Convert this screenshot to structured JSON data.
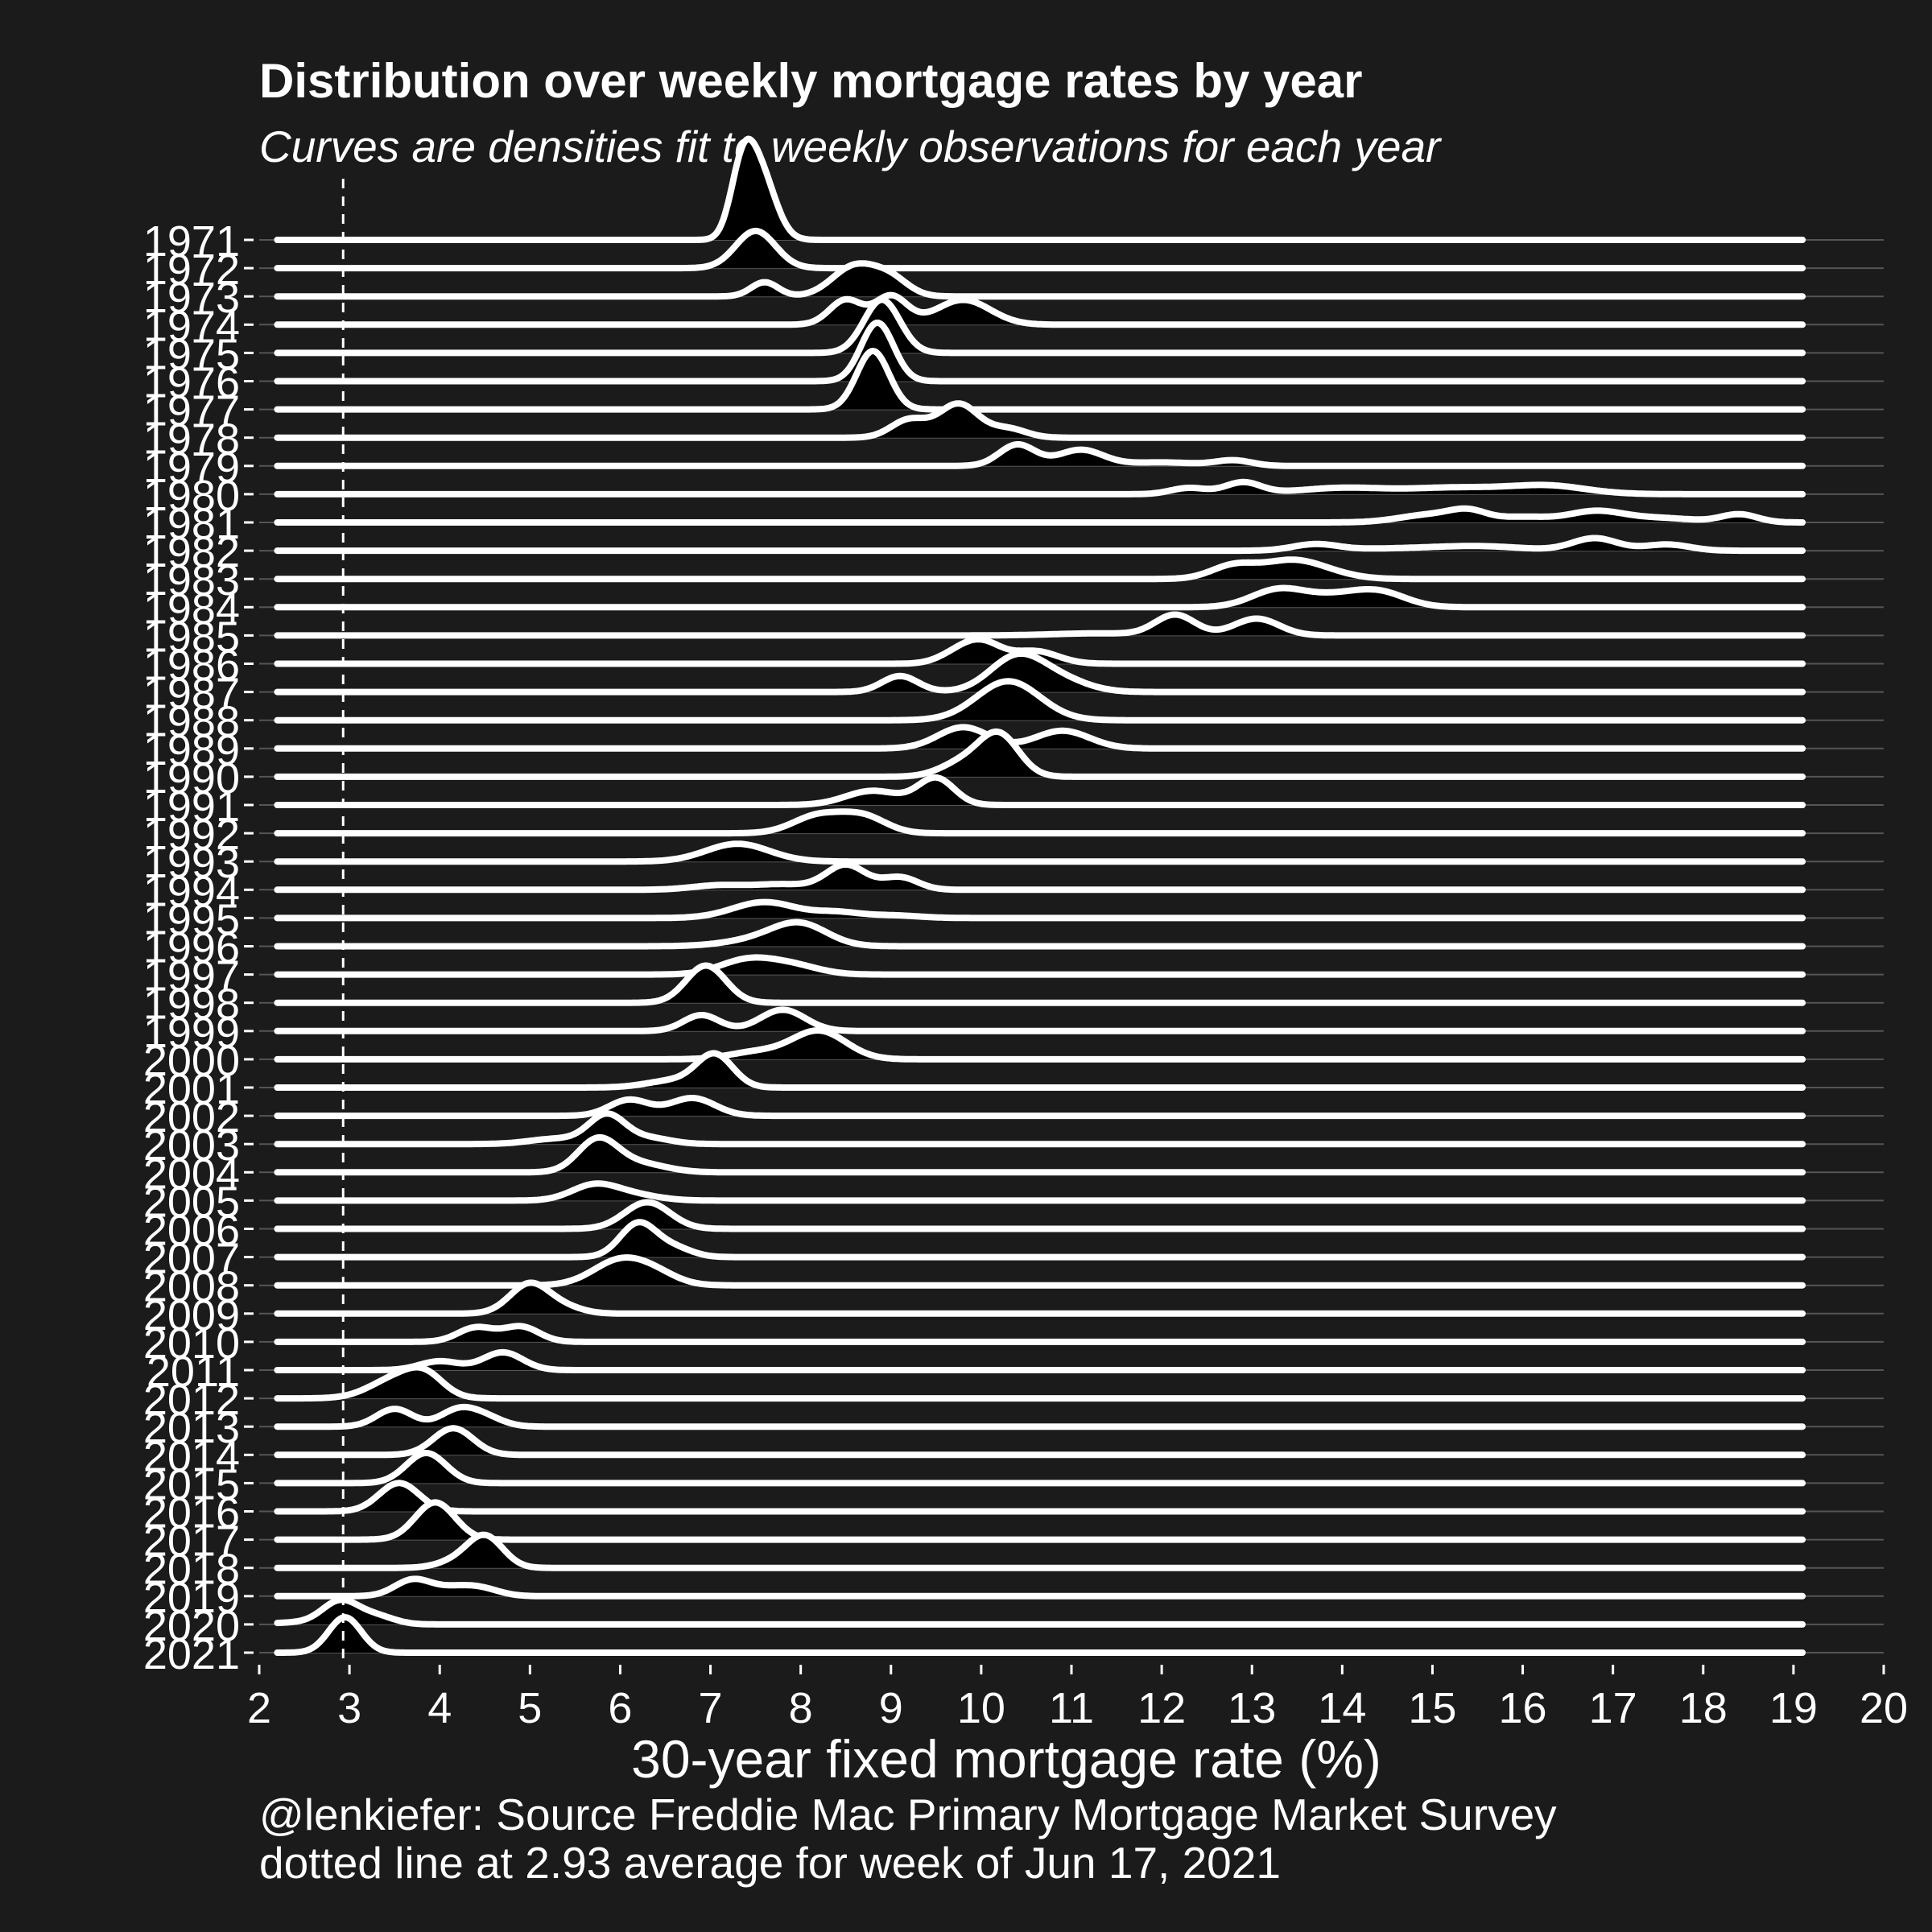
{
  "chart_data": {
    "type": "ridgeline",
    "title": "Distribution over weekly mortgage rates by year",
    "subtitle": "Curves are densities fit to weekly observations for each year",
    "xlabel": "30-year fixed mortgage rate (%)",
    "ylabel": "",
    "xlim": [
      2,
      20
    ],
    "x_ticks": [
      2,
      3,
      4,
      5,
      6,
      7,
      8,
      9,
      10,
      11,
      12,
      13,
      14,
      15,
      16,
      17,
      18,
      19,
      20
    ],
    "density_range": [
      2.2,
      19.1
    ],
    "grid": "horizontal baselines only",
    "reference_line": {
      "x": 2.93,
      "style": "dashed"
    },
    "caption_source": "@lenkiefer: Source Freddie Mac Primary Mortgage Market Survey",
    "caption_note": "dotted line at 2.93 average for week of Jun 17, 2021",
    "colors": {
      "background": "#1b1b1b",
      "fill": "#000000",
      "stroke": "#ffffff",
      "grid": "#555555"
    },
    "series": [
      {
        "year": "1971",
        "peaks": [
          [
            7.35,
            3.4,
            0.13
          ],
          [
            7.55,
            3.7,
            0.17
          ]
        ]
      },
      {
        "year": "1972",
        "peaks": [
          [
            7.5,
            2.1,
            0.22
          ]
        ]
      },
      {
        "year": "1973",
        "peaks": [
          [
            7.6,
            0.8,
            0.15
          ],
          [
            8.6,
            1.7,
            0.25
          ],
          [
            9.0,
            0.9,
            0.2
          ]
        ]
      },
      {
        "year": "1974",
        "peaks": [
          [
            8.5,
            1.4,
            0.18
          ],
          [
            9.0,
            1.6,
            0.18
          ],
          [
            9.8,
            1.4,
            0.3
          ]
        ]
      },
      {
        "year": "1975",
        "peaks": [
          [
            8.9,
            3.0,
            0.2
          ]
        ]
      },
      {
        "year": "1976",
        "peaks": [
          [
            8.85,
            3.3,
            0.18
          ]
        ]
      },
      {
        "year": "1977",
        "peaks": [
          [
            8.8,
            3.3,
            0.18
          ]
        ]
      },
      {
        "year": "1978",
        "peaks": [
          [
            9.2,
            1.0,
            0.2
          ],
          [
            9.75,
            1.9,
            0.22
          ],
          [
            10.3,
            0.5,
            0.2
          ]
        ]
      },
      {
        "year": "1979",
        "peaks": [
          [
            10.4,
            1.2,
            0.2
          ],
          [
            11.1,
            0.9,
            0.25
          ],
          [
            12.0,
            0.2,
            0.4
          ],
          [
            12.8,
            0.3,
            0.2
          ]
        ]
      },
      {
        "year": "1980",
        "peaks": [
          [
            12.3,
            0.35,
            0.2
          ],
          [
            12.9,
            0.65,
            0.2
          ],
          [
            14.0,
            0.35,
            0.5
          ],
          [
            15.2,
            0.3,
            0.5
          ],
          [
            16.3,
            0.35,
            0.4
          ],
          [
            16.0,
            0.15,
            0.6
          ]
        ]
      },
      {
        "year": "1981",
        "peaks": [
          [
            15.0,
            0.45,
            0.35
          ],
          [
            15.4,
            0.5,
            0.2
          ],
          [
            16.0,
            0.3,
            0.3
          ],
          [
            16.8,
            0.6,
            0.3
          ],
          [
            17.5,
            0.25,
            0.4
          ],
          [
            18.4,
            0.45,
            0.2
          ]
        ]
      },
      {
        "year": "1982",
        "peaks": [
          [
            13.7,
            0.35,
            0.25
          ],
          [
            14.5,
            0.1,
            0.5
          ],
          [
            15.5,
            0.25,
            0.5
          ],
          [
            16.8,
            0.7,
            0.25
          ],
          [
            17.6,
            0.35,
            0.25
          ]
        ]
      },
      {
        "year": "1983",
        "peaks": [
          [
            12.8,
            0.75,
            0.25
          ],
          [
            13.4,
            0.9,
            0.3
          ],
          [
            13.8,
            0.35,
            0.3
          ]
        ]
      },
      {
        "year": "1984",
        "peaks": [
          [
            13.3,
            1.0,
            0.3
          ],
          [
            13.9,
            0.5,
            0.3
          ],
          [
            14.4,
            0.85,
            0.3
          ]
        ]
      },
      {
        "year": "1985",
        "peaks": [
          [
            11.3,
            0.12,
            0.5
          ],
          [
            12.15,
            1.15,
            0.22
          ],
          [
            13.05,
            0.95,
            0.25
          ]
        ]
      },
      {
        "year": "1986",
        "peaks": [
          [
            9.7,
            0.4,
            0.2
          ],
          [
            10.0,
            1.2,
            0.22
          ],
          [
            10.6,
            0.7,
            0.25
          ]
        ]
      },
      {
        "year": "1987",
        "peaks": [
          [
            9.1,
            0.9,
            0.2
          ],
          [
            10.4,
            2.0,
            0.3
          ],
          [
            10.9,
            0.6,
            0.3
          ]
        ]
      },
      {
        "year": "1988",
        "peaks": [
          [
            10.3,
            2.2,
            0.35
          ]
        ]
      },
      {
        "year": "1989",
        "peaks": [
          [
            9.8,
            1.2,
            0.28
          ],
          [
            10.9,
            1.0,
            0.3
          ]
        ]
      },
      {
        "year": "1990",
        "peaks": [
          [
            9.8,
            0.8,
            0.25
          ],
          [
            10.2,
            2.3,
            0.22
          ]
        ]
      },
      {
        "year": "1991",
        "peaks": [
          [
            8.8,
            0.8,
            0.3
          ],
          [
            9.5,
            1.5,
            0.2
          ]
        ]
      },
      {
        "year": "1992",
        "peaks": [
          [
            8.2,
            1.0,
            0.28
          ],
          [
            8.7,
            0.9,
            0.25
          ]
        ]
      },
      {
        "year": "1993",
        "peaks": [
          [
            7.3,
            1.0,
            0.35
          ]
        ]
      },
      {
        "year": "1994",
        "peaks": [
          [
            7.1,
            0.25,
            0.3
          ],
          [
            7.8,
            0.3,
            0.3
          ],
          [
            8.5,
            1.4,
            0.22
          ],
          [
            9.1,
            0.7,
            0.2
          ]
        ]
      },
      {
        "year": "1995",
        "peaks": [
          [
            7.6,
            0.9,
            0.35
          ],
          [
            8.4,
            0.3,
            0.25
          ],
          [
            9.0,
            0.15,
            0.3
          ]
        ]
      },
      {
        "year": "1996",
        "peaks": [
          [
            7.6,
            0.4,
            0.4
          ],
          [
            8.0,
            1.1,
            0.3
          ]
        ]
      },
      {
        "year": "1997",
        "peaks": [
          [
            7.4,
            0.8,
            0.3
          ],
          [
            7.9,
            0.5,
            0.3
          ]
        ]
      },
      {
        "year": "1998",
        "peaks": [
          [
            6.95,
            2.1,
            0.22
          ]
        ]
      },
      {
        "year": "1999",
        "peaks": [
          [
            6.9,
            0.9,
            0.2
          ],
          [
            7.8,
            1.2,
            0.25
          ]
        ]
      },
      {
        "year": "2000",
        "peaks": [
          [
            7.5,
            0.4,
            0.3
          ],
          [
            8.2,
            1.6,
            0.3
          ]
        ]
      },
      {
        "year": "2001",
        "peaks": [
          [
            6.6,
            0.4,
            0.3
          ],
          [
            7.05,
            1.8,
            0.2
          ]
        ]
      },
      {
        "year": "2002",
        "peaks": [
          [
            6.1,
            0.9,
            0.22
          ],
          [
            6.8,
            1.0,
            0.25
          ]
        ]
      },
      {
        "year": "2003",
        "peaks": [
          [
            5.3,
            0.3,
            0.3
          ],
          [
            5.85,
            1.6,
            0.2
          ],
          [
            6.3,
            0.35,
            0.25
          ]
        ]
      },
      {
        "year": "2004",
        "peaks": [
          [
            5.75,
            1.8,
            0.22
          ],
          [
            6.2,
            0.5,
            0.3
          ]
        ]
      },
      {
        "year": "2005",
        "peaks": [
          [
            5.7,
            0.8,
            0.25
          ],
          [
            6.1,
            0.35,
            0.3
          ]
        ]
      },
      {
        "year": "2006",
        "peaks": [
          [
            6.3,
            1.5,
            0.25
          ]
        ]
      },
      {
        "year": "2007",
        "peaks": [
          [
            6.2,
            1.9,
            0.2
          ],
          [
            6.6,
            0.5,
            0.2
          ]
        ]
      },
      {
        "year": "2008",
        "peaks": [
          [
            6.0,
            1.4,
            0.3
          ],
          [
            6.4,
            0.5,
            0.25
          ]
        ]
      },
      {
        "year": "2009",
        "peaks": [
          [
            5.0,
            1.7,
            0.22
          ],
          [
            5.4,
            0.3,
            0.2
          ]
        ]
      },
      {
        "year": "2010",
        "peaks": [
          [
            4.4,
            0.8,
            0.2
          ],
          [
            4.9,
            0.85,
            0.2
          ]
        ]
      },
      {
        "year": "2011",
        "peaks": [
          [
            4.0,
            0.5,
            0.22
          ],
          [
            4.7,
            1.0,
            0.22
          ]
        ]
      },
      {
        "year": "2012",
        "peaks": [
          [
            3.55,
            1.2,
            0.3
          ],
          [
            3.85,
            0.9,
            0.2
          ]
        ]
      },
      {
        "year": "2013",
        "peaks": [
          [
            3.5,
            1.0,
            0.2
          ],
          [
            4.2,
            0.9,
            0.2
          ],
          [
            4.5,
            0.5,
            0.2
          ]
        ]
      },
      {
        "year": "2014",
        "peaks": [
          [
            4.15,
            1.5,
            0.22
          ]
        ]
      },
      {
        "year": "2015",
        "peaks": [
          [
            3.85,
            1.7,
            0.22
          ]
        ]
      },
      {
        "year": "2016",
        "peaks": [
          [
            3.55,
            1.6,
            0.22
          ]
        ]
      },
      {
        "year": "2017",
        "peaks": [
          [
            3.95,
            2.1,
            0.22
          ]
        ]
      },
      {
        "year": "2018",
        "peaks": [
          [
            4.5,
            1.8,
            0.2
          ],
          [
            4.15,
            0.3,
            0.2
          ]
        ]
      },
      {
        "year": "2019",
        "peaks": [
          [
            3.7,
            0.9,
            0.2
          ],
          [
            4.2,
            0.5,
            0.25
          ],
          [
            4.5,
            0.25,
            0.2
          ]
        ]
      },
      {
        "year": "2020",
        "peaks": [
          [
            2.9,
            1.3,
            0.2
          ],
          [
            3.3,
            0.45,
            0.2
          ],
          [
            2.4,
            0.1,
            0.3
          ]
        ]
      },
      {
        "year": "2021",
        "peaks": [
          [
            2.95,
            2.0,
            0.18
          ]
        ]
      }
    ]
  }
}
